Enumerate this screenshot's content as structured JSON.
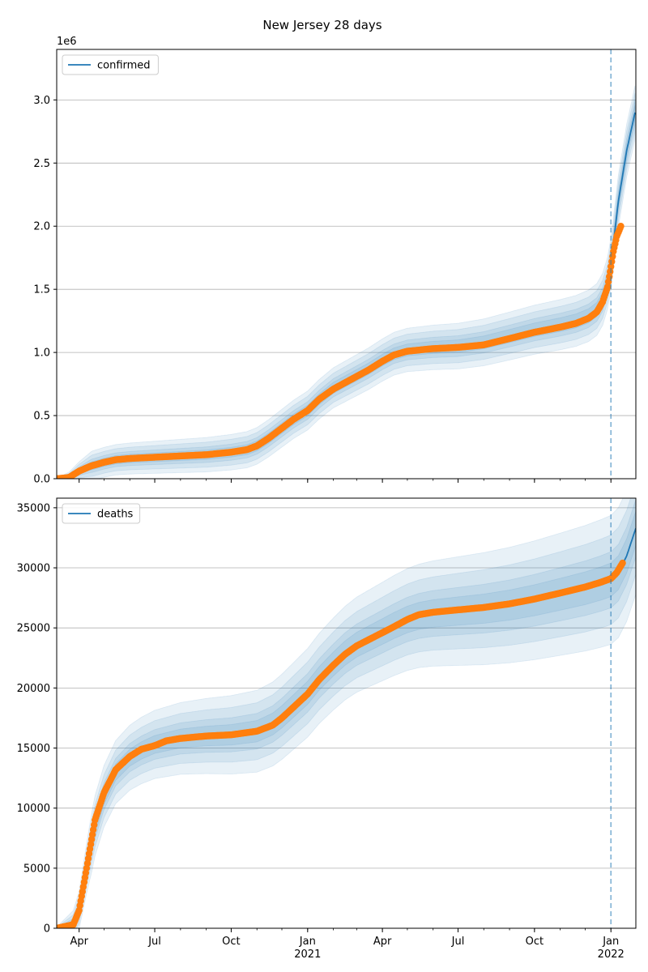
{
  "figure": {
    "title": "New Jersey 28 days"
  },
  "chart_data": [
    {
      "type": "line",
      "legend": "upper-left",
      "grid": "y",
      "offset_label": "1e6",
      "ylim": [
        0,
        3.4
      ],
      "yticks": [
        {
          "v": 0.0,
          "label": "0.0"
        },
        {
          "v": 0.5,
          "label": "0.5"
        },
        {
          "v": 1.0,
          "label": "1.0"
        },
        {
          "v": 1.5,
          "label": "1.5"
        },
        {
          "v": 2.0,
          "label": "2.0"
        },
        {
          "v": 2.5,
          "label": "2.5"
        },
        {
          "v": 3.0,
          "label": "3.0"
        }
      ],
      "series": [
        {
          "name": "confirmed",
          "color": "#1f77b4"
        }
      ],
      "model": [
        [
          "2020-03-05",
          0.0
        ],
        [
          "2020-03-20",
          0.01
        ],
        [
          "2020-04-01",
          0.06
        ],
        [
          "2020-04-15",
          0.1
        ],
        [
          "2020-05-01",
          0.13
        ],
        [
          "2020-05-15",
          0.15
        ],
        [
          "2020-06-01",
          0.16
        ],
        [
          "2020-07-01",
          0.17
        ],
        [
          "2020-08-01",
          0.18
        ],
        [
          "2020-09-01",
          0.19
        ],
        [
          "2020-10-01",
          0.21
        ],
        [
          "2020-10-20",
          0.23
        ],
        [
          "2020-11-01",
          0.26
        ],
        [
          "2020-11-15",
          0.32
        ],
        [
          "2020-12-01",
          0.4
        ],
        [
          "2020-12-15",
          0.47
        ],
        [
          "2021-01-01",
          0.54
        ],
        [
          "2021-01-15",
          0.63
        ],
        [
          "2021-02-01",
          0.72
        ],
        [
          "2021-02-15",
          0.77
        ],
        [
          "2021-03-01",
          0.82
        ],
        [
          "2021-03-15",
          0.87
        ],
        [
          "2021-04-01",
          0.94
        ],
        [
          "2021-04-15",
          0.99
        ],
        [
          "2021-05-01",
          1.02
        ],
        [
          "2021-06-01",
          1.04
        ],
        [
          "2021-07-01",
          1.05
        ],
        [
          "2021-08-01",
          1.08
        ],
        [
          "2021-09-01",
          1.13
        ],
        [
          "2021-10-01",
          1.18
        ],
        [
          "2021-11-01",
          1.22
        ],
        [
          "2021-11-20",
          1.25
        ],
        [
          "2021-12-05",
          1.29
        ],
        [
          "2021-12-15",
          1.34
        ],
        [
          "2021-12-22",
          1.42
        ],
        [
          "2021-12-28",
          1.55
        ],
        [
          "2022-01-01",
          1.7
        ],
        [
          "2022-01-05",
          1.92
        ],
        [
          "2022-01-10",
          2.2
        ],
        [
          "2022-01-20",
          2.6
        ],
        [
          "2022-01-30",
          2.9
        ]
      ],
      "observed": [
        [
          "2020-03-05",
          0.0
        ],
        [
          "2020-03-20",
          0.01
        ],
        [
          "2020-04-01",
          0.06
        ],
        [
          "2020-04-15",
          0.1
        ],
        [
          "2020-05-01",
          0.13
        ],
        [
          "2020-05-15",
          0.15
        ],
        [
          "2020-06-01",
          0.16
        ],
        [
          "2020-07-01",
          0.17
        ],
        [
          "2020-08-01",
          0.18
        ],
        [
          "2020-09-01",
          0.19
        ],
        [
          "2020-10-01",
          0.21
        ],
        [
          "2020-10-20",
          0.23
        ],
        [
          "2020-11-01",
          0.26
        ],
        [
          "2020-11-15",
          0.32
        ],
        [
          "2020-12-01",
          0.4
        ],
        [
          "2020-12-15",
          0.47
        ],
        [
          "2021-01-01",
          0.54
        ],
        [
          "2021-01-15",
          0.63
        ],
        [
          "2021-02-01",
          0.71
        ],
        [
          "2021-02-15",
          0.76
        ],
        [
          "2021-03-01",
          0.81
        ],
        [
          "2021-03-15",
          0.86
        ],
        [
          "2021-04-01",
          0.93
        ],
        [
          "2021-04-15",
          0.98
        ],
        [
          "2021-05-01",
          1.01
        ],
        [
          "2021-06-01",
          1.03
        ],
        [
          "2021-07-01",
          1.04
        ],
        [
          "2021-08-01",
          1.06
        ],
        [
          "2021-09-01",
          1.11
        ],
        [
          "2021-10-01",
          1.16
        ],
        [
          "2021-11-01",
          1.2
        ],
        [
          "2021-11-20",
          1.23
        ],
        [
          "2021-12-05",
          1.27
        ],
        [
          "2021-12-15",
          1.32
        ],
        [
          "2021-12-22",
          1.4
        ],
        [
          "2021-12-28",
          1.52
        ],
        [
          "2022-01-01",
          1.68
        ],
        [
          "2022-01-04",
          1.8
        ],
        [
          "2022-01-08",
          1.92
        ],
        [
          "2022-01-13",
          2.0
        ]
      ],
      "band_half_widths": [
        0.03,
        0.05,
        0.08,
        0.11
      ],
      "band_growth": 0.04,
      "forecast_start": "2022-01-01"
    },
    {
      "type": "line",
      "legend": "upper-left",
      "grid": "y",
      "ylim": [
        0,
        35800
      ],
      "yticks": [
        {
          "v": 0,
          "label": "0"
        },
        {
          "v": 5000,
          "label": "5000"
        },
        {
          "v": 10000,
          "label": "10000"
        },
        {
          "v": 15000,
          "label": "15000"
        },
        {
          "v": 20000,
          "label": "20000"
        },
        {
          "v": 25000,
          "label": "25000"
        },
        {
          "v": 30000,
          "label": "30000"
        },
        {
          "v": 35000,
          "label": "35000"
        }
      ],
      "series": [
        {
          "name": "deaths",
          "color": "#1f77b4"
        }
      ],
      "model": [
        [
          "2020-03-05",
          0
        ],
        [
          "2020-03-25",
          300
        ],
        [
          "2020-04-01",
          1500
        ],
        [
          "2020-04-10",
          5000
        ],
        [
          "2020-04-20",
          8500
        ],
        [
          "2020-05-01",
          11000
        ],
        [
          "2020-05-15",
          13000
        ],
        [
          "2020-06-01",
          14200
        ],
        [
          "2020-06-15",
          14800
        ],
        [
          "2020-07-01",
          15300
        ],
        [
          "2020-08-01",
          15800
        ],
        [
          "2020-09-01",
          16000
        ],
        [
          "2020-10-01",
          16100
        ],
        [
          "2020-11-01",
          16400
        ],
        [
          "2020-11-20",
          17000
        ],
        [
          "2020-12-01",
          17600
        ],
        [
          "2020-12-15",
          18500
        ],
        [
          "2021-01-01",
          19600
        ],
        [
          "2021-01-15",
          20800
        ],
        [
          "2021-02-01",
          22000
        ],
        [
          "2021-02-15",
          22900
        ],
        [
          "2021-03-01",
          23600
        ],
        [
          "2021-03-15",
          24100
        ],
        [
          "2021-04-01",
          24700
        ],
        [
          "2021-04-15",
          25200
        ],
        [
          "2021-05-01",
          25700
        ],
        [
          "2021-05-15",
          26000
        ],
        [
          "2021-06-01",
          26200
        ],
        [
          "2021-07-01",
          26400
        ],
        [
          "2021-08-01",
          26600
        ],
        [
          "2021-09-01",
          26900
        ],
        [
          "2021-10-01",
          27300
        ],
        [
          "2021-11-01",
          27800
        ],
        [
          "2021-12-01",
          28300
        ],
        [
          "2021-12-20",
          28700
        ],
        [
          "2022-01-01",
          29000
        ],
        [
          "2022-01-10",
          29600
        ],
        [
          "2022-01-20",
          31000
        ],
        [
          "2022-01-31",
          33300
        ]
      ],
      "observed": [
        [
          "2020-03-05",
          0
        ],
        [
          "2020-03-25",
          300
        ],
        [
          "2020-04-01",
          1500
        ],
        [
          "2020-04-10",
          5000
        ],
        [
          "2020-04-20",
          9000
        ],
        [
          "2020-05-01",
          11300
        ],
        [
          "2020-05-15",
          13200
        ],
        [
          "2020-06-01",
          14300
        ],
        [
          "2020-06-15",
          14900
        ],
        [
          "2020-07-01",
          15200
        ],
        [
          "2020-07-15",
          15600
        ],
        [
          "2020-08-01",
          15800
        ],
        [
          "2020-09-01",
          16000
        ],
        [
          "2020-10-01",
          16100
        ],
        [
          "2020-11-01",
          16400
        ],
        [
          "2020-11-20",
          16900
        ],
        [
          "2020-12-01",
          17500
        ],
        [
          "2020-12-15",
          18400
        ],
        [
          "2021-01-01",
          19500
        ],
        [
          "2021-01-15",
          20700
        ],
        [
          "2021-02-01",
          21900
        ],
        [
          "2021-02-15",
          22800
        ],
        [
          "2021-03-01",
          23500
        ],
        [
          "2021-03-15",
          24000
        ],
        [
          "2021-04-01",
          24600
        ],
        [
          "2021-04-15",
          25100
        ],
        [
          "2021-05-01",
          25700
        ],
        [
          "2021-05-15",
          26100
        ],
        [
          "2021-06-01",
          26300
        ],
        [
          "2021-07-01",
          26500
        ],
        [
          "2021-08-01",
          26700
        ],
        [
          "2021-09-01",
          27000
        ],
        [
          "2021-10-01",
          27400
        ],
        [
          "2021-11-01",
          27900
        ],
        [
          "2021-12-01",
          28400
        ],
        [
          "2021-12-20",
          28800
        ],
        [
          "2022-01-01",
          29100
        ],
        [
          "2022-01-08",
          29600
        ],
        [
          "2022-01-15",
          30400
        ]
      ],
      "band_half_widths": [
        600,
        1000,
        1600,
        2300
      ],
      "band_growth": 0.06,
      "forecast_start": "2022-01-01"
    }
  ],
  "x_axis": {
    "range": [
      "2020-03-05",
      "2022-01-31"
    ],
    "major_ticks": [
      {
        "date": "2020-04-01",
        "label": "Apr",
        "year": ""
      },
      {
        "date": "2020-07-01",
        "label": "Jul",
        "year": ""
      },
      {
        "date": "2020-10-01",
        "label": "Oct",
        "year": ""
      },
      {
        "date": "2021-01-01",
        "label": "Jan",
        "year": "2021"
      },
      {
        "date": "2021-04-01",
        "label": "Apr",
        "year": ""
      },
      {
        "date": "2021-07-01",
        "label": "Jul",
        "year": ""
      },
      {
        "date": "2021-10-01",
        "label": "Oct",
        "year": ""
      },
      {
        "date": "2022-01-01",
        "label": "Jan",
        "year": "2022"
      }
    ]
  }
}
